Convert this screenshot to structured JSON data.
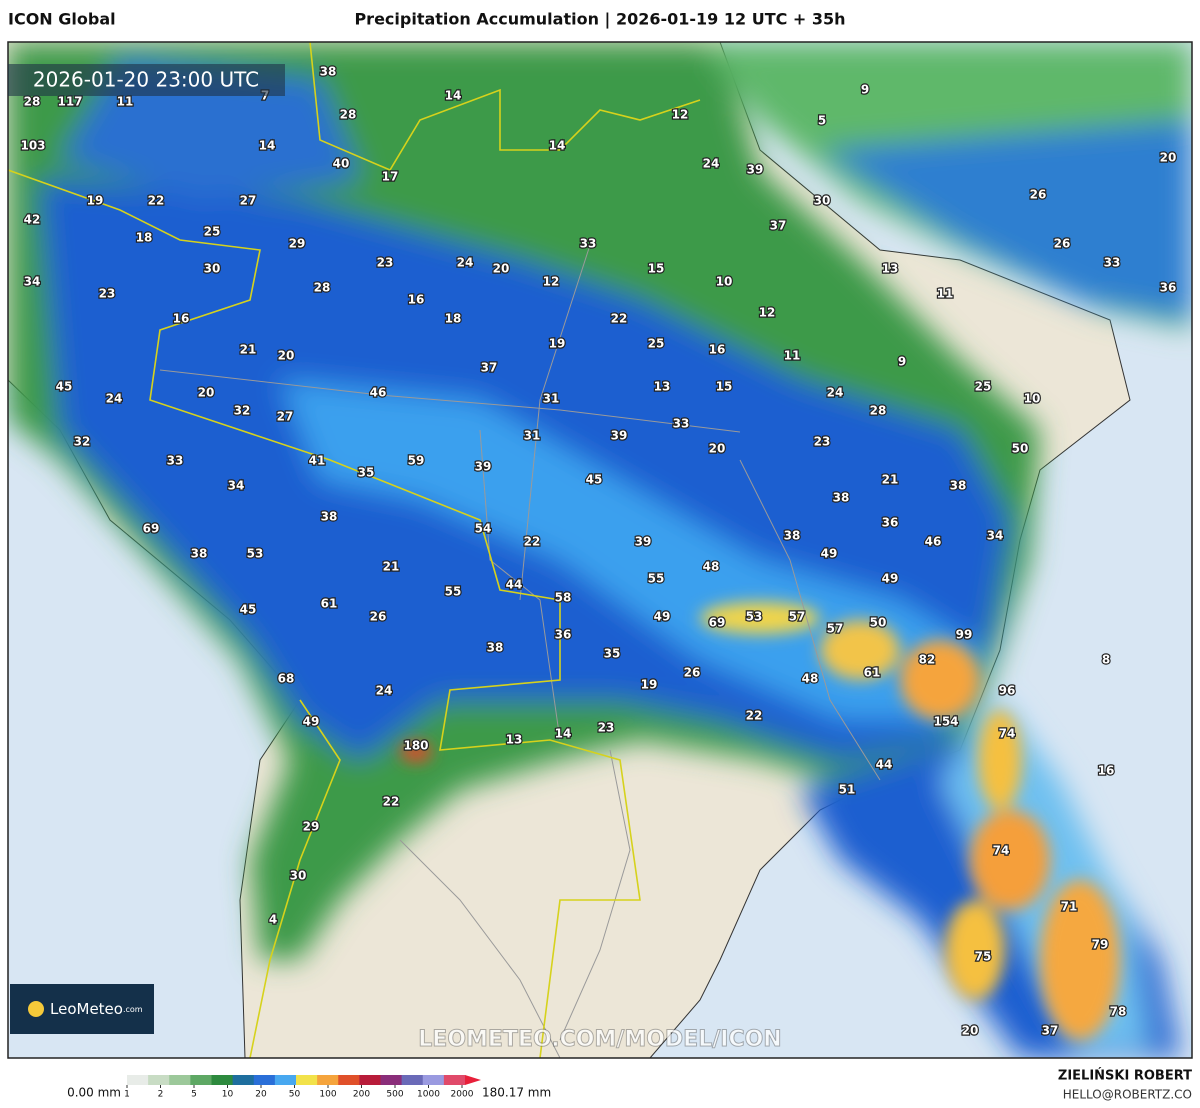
{
  "header": {
    "model": "ICON Global",
    "title": "Precipitation Accumulation | 2026-01-19 12 UTC + 35h"
  },
  "timestamp": "2026-01-20 23:00 UTC",
  "map": {
    "labels": [
      38,
      14,
      7,
      28,
      117,
      11,
      28,
      12,
      9,
      5,
      103,
      14,
      14,
      40,
      17,
      24,
      39,
      20,
      19,
      22,
      27,
      30,
      26,
      42,
      18,
      25,
      37,
      33,
      29,
      26,
      24,
      20,
      30,
      23,
      15,
      13,
      33,
      34,
      12,
      10,
      11,
      36,
      23,
      28,
      16,
      12,
      16,
      18,
      22,
      21,
      20,
      19,
      25,
      16,
      11,
      9,
      37,
      45,
      13,
      15,
      25,
      24,
      20,
      46,
      31,
      24,
      10,
      28,
      32,
      27,
      33,
      31,
      39,
      23,
      32,
      20,
      50,
      33,
      41,
      59,
      39,
      35,
      45,
      21,
      38,
      34,
      38,
      38,
      36,
      69,
      54,
      38,
      46,
      34,
      22,
      39,
      38,
      53,
      49,
      48,
      21,
      49,
      55,
      44,
      55,
      58,
      45,
      61,
      53,
      57,
      26,
      49,
      69,
      57,
      50,
      99,
      36,
      38,
      35,
      61,
      82,
      8,
      26,
      48,
      68,
      19,
      96,
      24,
      22,
      154,
      49,
      74,
      14,
      23,
      13,
      180,
      44,
      16,
      51,
      22,
      29,
      74,
      30,
      71,
      4,
      79,
      75,
      78,
      20,
      37
    ]
  },
  "watermark": "LEOMETEO.COM/MODEL/ICON",
  "logo": {
    "name": "LeoMeteo",
    "suffix": ".com"
  },
  "legend": {
    "min_label": "0.00 mm",
    "ticks": [
      1,
      2,
      5,
      10,
      20,
      50,
      100,
      200,
      500,
      1000,
      2000
    ],
    "max_label": "180.17 mm"
  },
  "credit": {
    "author": "ZIELIŃSKI ROBERT",
    "email": "HELLO@ROBERTZ.CO"
  }
}
